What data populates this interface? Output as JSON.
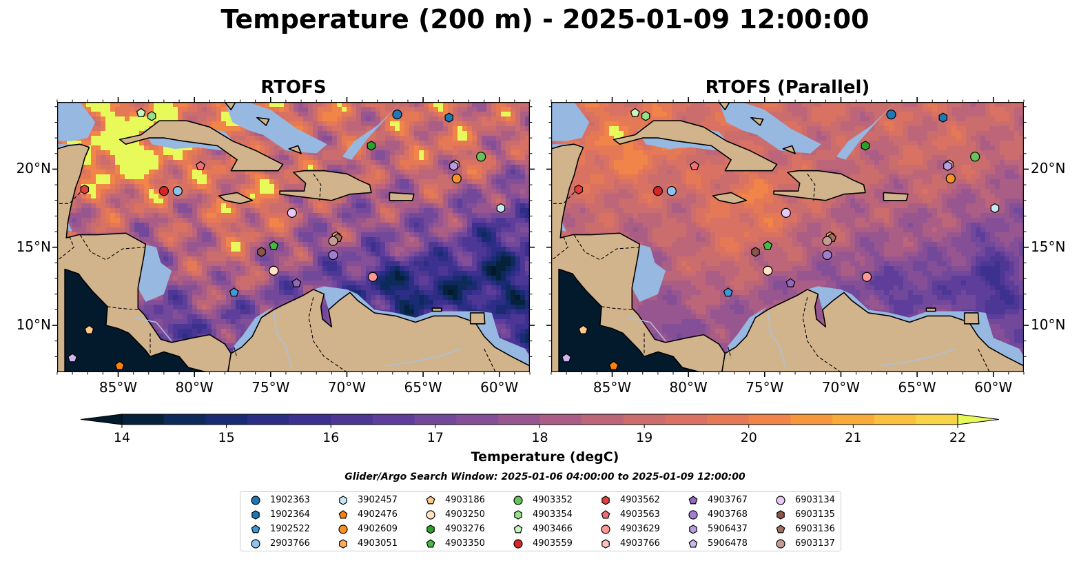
{
  "title": "Temperature (200 m) - 2025-01-09 12:00:00",
  "panels": [
    {
      "title": "RTOFS",
      "mode": "rtofs"
    },
    {
      "title": "RTOFS (Parallel)",
      "mode": "parallel"
    }
  ],
  "map_extent": {
    "lon_min": -89,
    "lon_max": -58,
    "lat_min": 7,
    "lat_max": 24.3
  },
  "x_ticks": [
    "85°W",
    "80°W",
    "75°W",
    "70°W",
    "65°W",
    "60°W"
  ],
  "x_tick_values": [
    -85,
    -80,
    -75,
    -70,
    -65,
    -60
  ],
  "y_ticks": [
    "20°N",
    "15°N",
    "10°N"
  ],
  "y_tick_values": [
    20,
    15,
    10
  ],
  "colorbar": {
    "label": "Temperature (degC)",
    "min": 14,
    "max": 22,
    "step": 0.5,
    "ticks": [
      "14",
      "15",
      "16",
      "17",
      "18",
      "19",
      "20",
      "21",
      "22"
    ],
    "colors": [
      "#06213b",
      "#0c2a5a",
      "#1b2b73",
      "#2c2e85",
      "#3c318f",
      "#4c3795",
      "#5e3e9a",
      "#71489a",
      "#844f96",
      "#985690",
      "#ab5e85",
      "#bd6579",
      "#cc6d6d",
      "#d97262",
      "#e67955",
      "#f08449",
      "#f6973d",
      "#f9ab39",
      "#fbc03d",
      "#f8d446",
      "#f3e653"
    ],
    "under_color": "#031a2d",
    "over_color": "#e7fa5a"
  },
  "search_window": "Glider/Argo Search Window: 2025-01-06 04:00:00 to 2025-01-09 12:00:00",
  "land_color": "#d2b48c",
  "shelf_color": "#97b8e0",
  "legend": [
    {
      "id": "1902363",
      "marker": "circle",
      "color": "#1f77b4"
    },
    {
      "id": "1902364",
      "marker": "hexagon",
      "color": "#1f77b4"
    },
    {
      "id": "1902522",
      "marker": "pentagon",
      "color": "#3b9bd9"
    },
    {
      "id": "2903766",
      "marker": "circle",
      "color": "#8fc2ec"
    },
    {
      "id": "3902457",
      "marker": "hexagon",
      "color": "#c6e8f7"
    },
    {
      "id": "4902476",
      "marker": "pentagon",
      "color": "#ff7f0e"
    },
    {
      "id": "4902609",
      "marker": "circle",
      "color": "#f79225"
    },
    {
      "id": "4903051",
      "marker": "hexagon",
      "color": "#ffa95e"
    },
    {
      "id": "4903186",
      "marker": "pentagon",
      "color": "#ffc98a"
    },
    {
      "id": "4903250",
      "marker": "circle",
      "color": "#ffe2c4"
    },
    {
      "id": "4903276",
      "marker": "hexagon",
      "color": "#2ca02c"
    },
    {
      "id": "4903350",
      "marker": "pentagon",
      "color": "#4cb844"
    },
    {
      "id": "4903352",
      "marker": "circle",
      "color": "#66c45a"
    },
    {
      "id": "4903354",
      "marker": "hexagon",
      "color": "#98df8a"
    },
    {
      "id": "4903466",
      "marker": "pentagon",
      "color": "#c7f5c0"
    },
    {
      "id": "4903559",
      "marker": "circle",
      "color": "#d62728"
    },
    {
      "id": "4903562",
      "marker": "hexagon",
      "color": "#e23e3e"
    },
    {
      "id": "4903563",
      "marker": "pentagon",
      "color": "#f0707a"
    },
    {
      "id": "4903629",
      "marker": "circle",
      "color": "#ff9896"
    },
    {
      "id": "4903766",
      "marker": "hexagon",
      "color": "#ffc1c0"
    },
    {
      "id": "4903767",
      "marker": "pentagon",
      "color": "#9467bd"
    },
    {
      "id": "4903768",
      "marker": "circle",
      "color": "#a07fd0"
    },
    {
      "id": "5906437",
      "marker": "hexagon",
      "color": "#b89ee0"
    },
    {
      "id": "5906478",
      "marker": "pentagon",
      "color": "#cdb7ef"
    },
    {
      "id": "6903134",
      "marker": "circle",
      "color": "#e8c8f7"
    },
    {
      "id": "6903135",
      "marker": "hexagon",
      "color": "#8c564b"
    },
    {
      "id": "6903136",
      "marker": "pentagon",
      "color": "#a0705e"
    },
    {
      "id": "6903137",
      "marker": "circle",
      "color": "#c49c94"
    }
  ],
  "floats": [
    {
      "id": "1902363",
      "lon": -66.7,
      "lat": 23.5
    },
    {
      "id": "1902364",
      "lon": -63.3,
      "lat": 23.3
    },
    {
      "id": "1902522",
      "lon": -77.4,
      "lat": 12.1
    },
    {
      "id": "2903766",
      "lon": -81.1,
      "lat": 18.6
    },
    {
      "id": "3902457",
      "lon": -59.9,
      "lat": 17.5
    },
    {
      "id": "4902476",
      "lon": -84.9,
      "lat": 7.4
    },
    {
      "id": "4902609",
      "lon": -62.8,
      "lat": 19.4
    },
    {
      "id": "4903051",
      "lon": -70.7,
      "lat": 15.7
    },
    {
      "id": "4903186",
      "lon": -86.9,
      "lat": 9.7
    },
    {
      "id": "4903250",
      "lon": -74.8,
      "lat": 13.5
    },
    {
      "id": "4903276",
      "lon": -68.4,
      "lat": 21.5
    },
    {
      "id": "4903350",
      "lon": -74.8,
      "lat": 15.1
    },
    {
      "id": "4903352",
      "lon": -61.2,
      "lat": 20.8
    },
    {
      "id": "4903354",
      "lon": -82.8,
      "lat": 23.4
    },
    {
      "id": "4903466",
      "lon": -83.5,
      "lat": 23.6
    },
    {
      "id": "4903559",
      "lon": -82.0,
      "lat": 18.6
    },
    {
      "id": "4903562",
      "lon": -87.2,
      "lat": 18.7
    },
    {
      "id": "4903563",
      "lon": -79.6,
      "lat": 20.2
    },
    {
      "id": "4903629",
      "lon": -68.3,
      "lat": 13.1
    },
    {
      "id": "4903766",
      "lon": -62.9,
      "lat": 20.3
    },
    {
      "id": "4903767",
      "lon": -73.3,
      "lat": 12.7
    },
    {
      "id": "4903768",
      "lon": -70.9,
      "lat": 14.5
    },
    {
      "id": "5906437",
      "lon": -63.0,
      "lat": 20.2
    },
    {
      "id": "5906478",
      "lon": -88.0,
      "lat": 7.9
    },
    {
      "id": "6903134",
      "lon": -73.6,
      "lat": 17.2
    },
    {
      "id": "6903135",
      "lon": -75.6,
      "lat": 14.7
    },
    {
      "id": "6903136",
      "lon": -70.6,
      "lat": 15.6
    },
    {
      "id": "6903137",
      "lon": -70.9,
      "lat": 15.4
    }
  ]
}
